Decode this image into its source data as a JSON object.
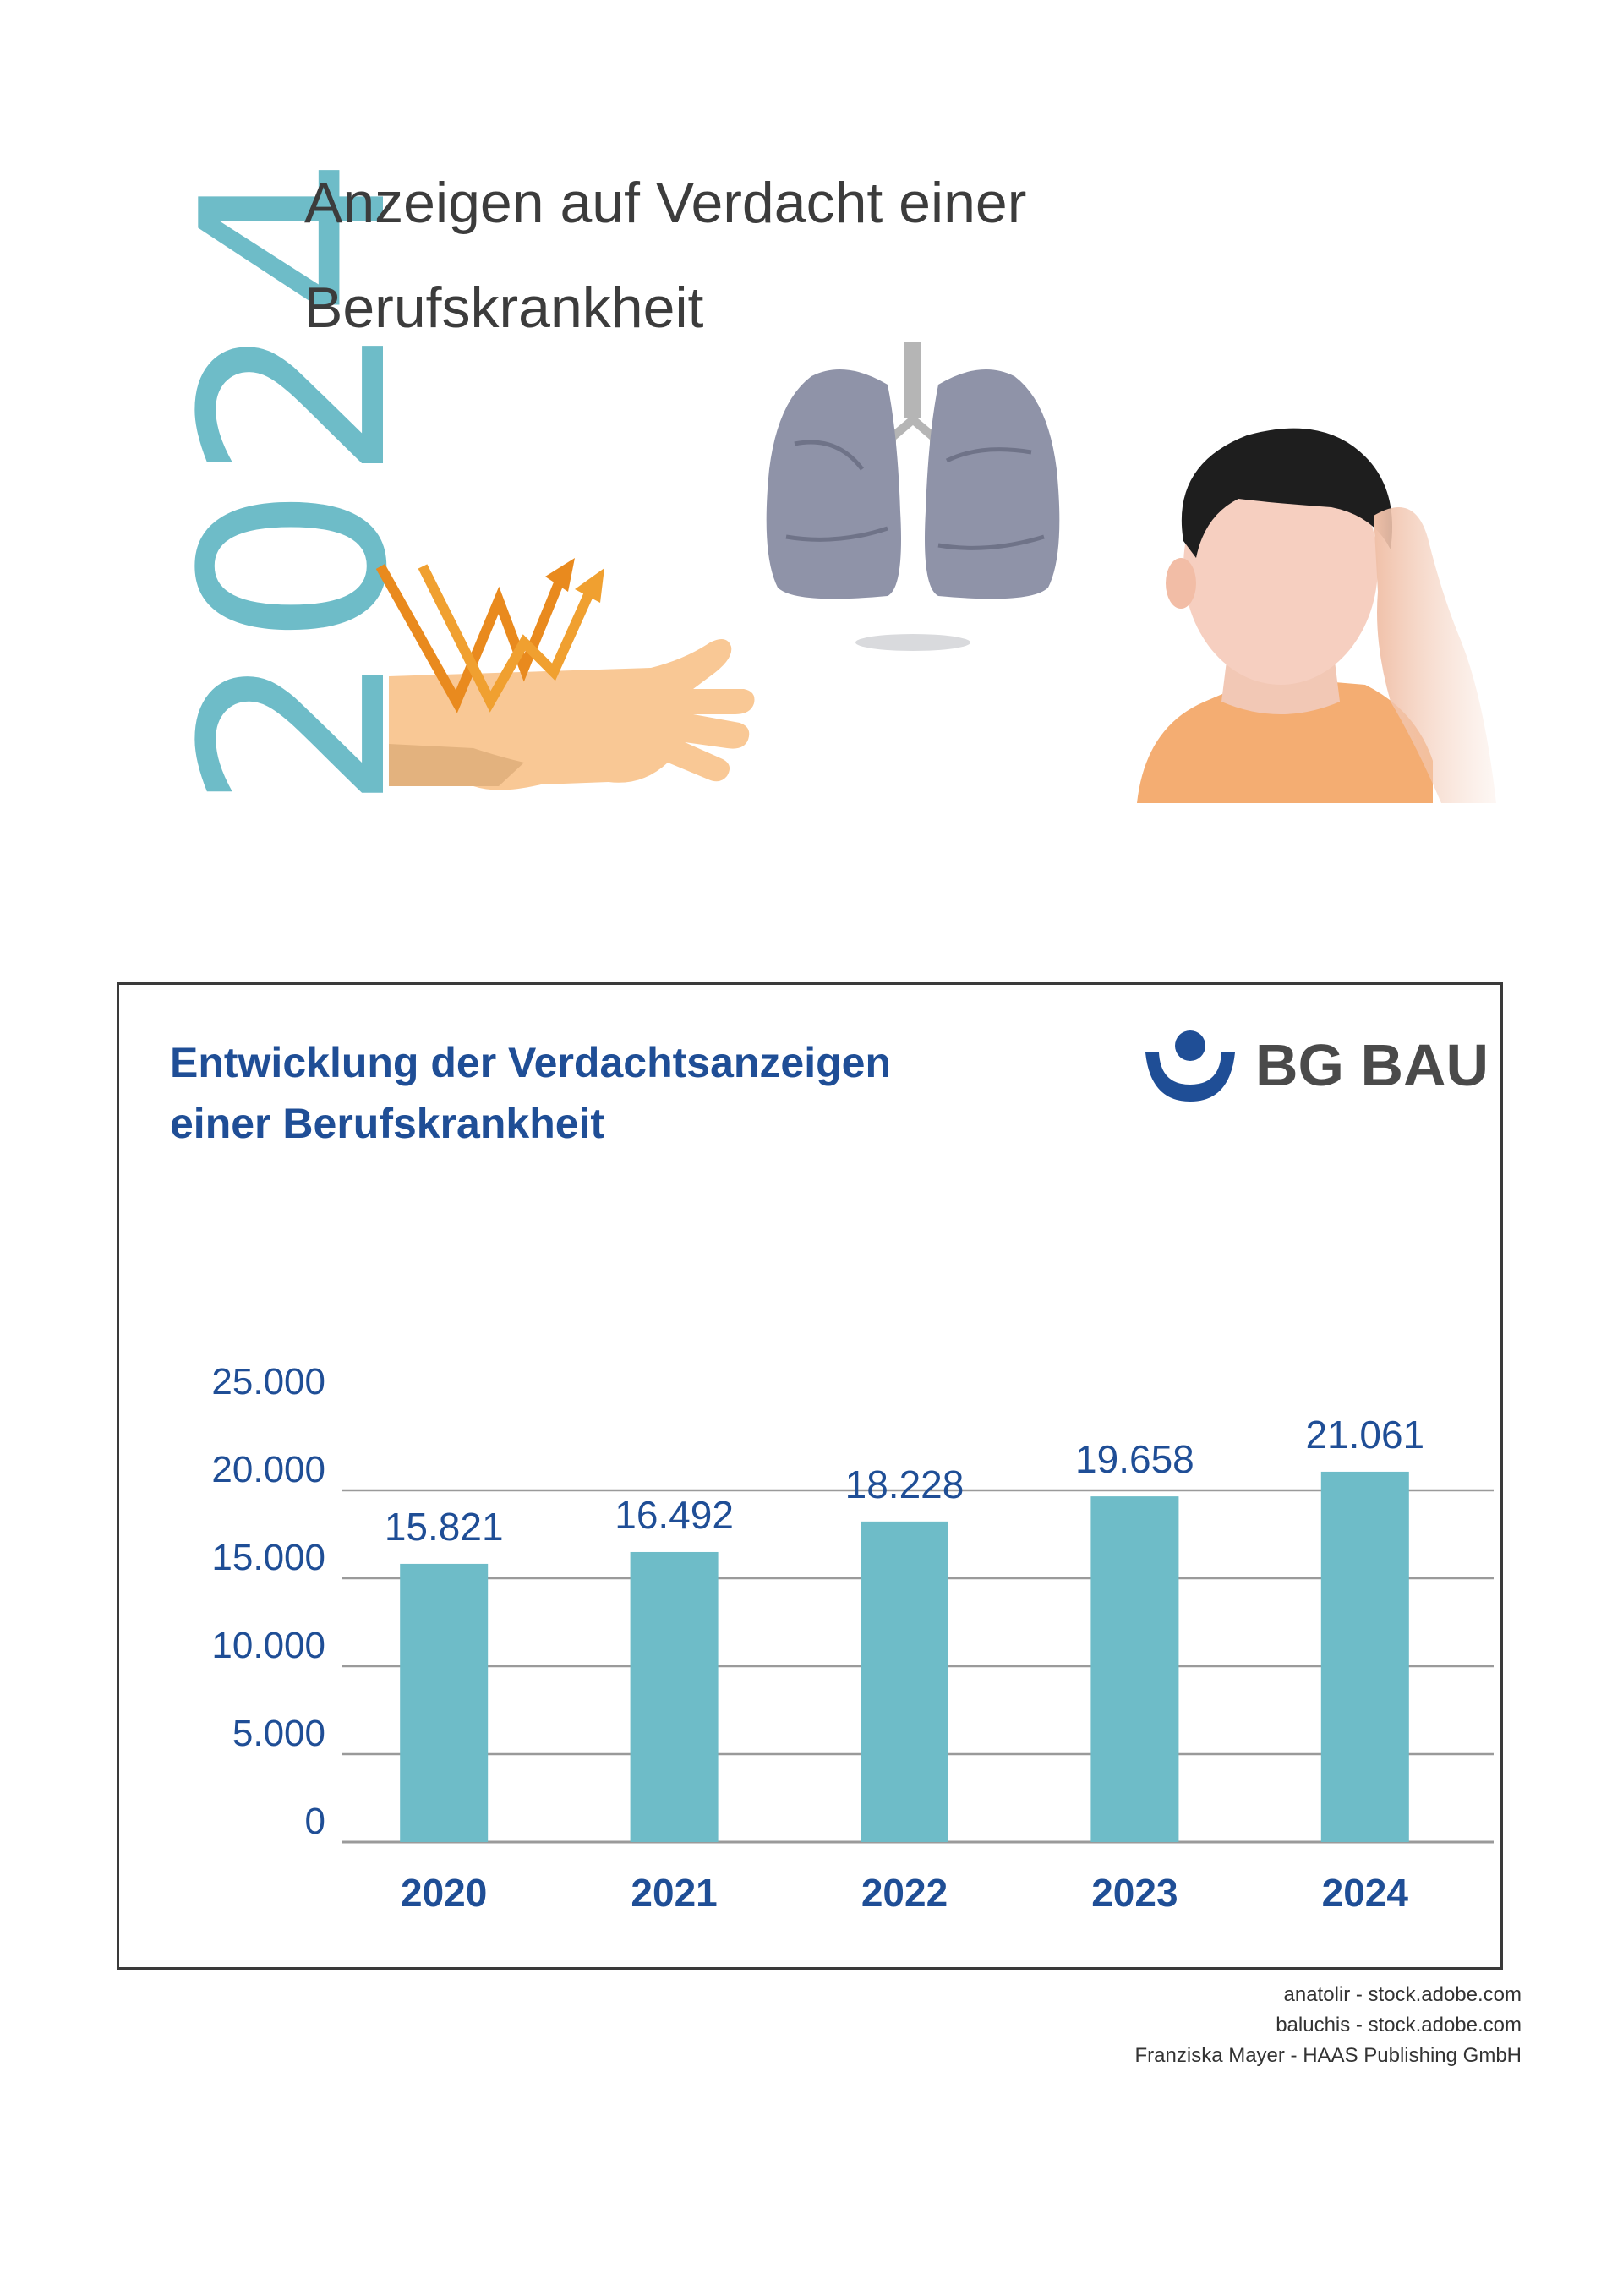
{
  "header": {
    "year": "2024",
    "title_line1": "Anzeigen auf Verdacht einer",
    "title_line2": "Berufskrankheit"
  },
  "illustrations": {
    "hand": "hand-with-vibration-arrows-icon",
    "lungs": "lungs-icon",
    "person": "person-listening-icon"
  },
  "colors": {
    "accent": "#6ebcc8",
    "title_blue": "#1f4e96",
    "axis_blue": "#1f4e96",
    "grid": "#9a9a9a",
    "text": "#3c3c3c"
  },
  "logo": {
    "text": "BG BAU",
    "icon": "bg-bau-emblem-icon"
  },
  "chart_data": {
    "type": "bar",
    "title_line1": "Entwicklung der Verdachtsanzeigen",
    "title_line2": "einer Berufskrankheit",
    "categories": [
      "2020",
      "2021",
      "2022",
      "2023",
      "2024"
    ],
    "values": [
      15821,
      16492,
      18228,
      19658,
      21061
    ],
    "value_labels": [
      "15.821",
      "16.492",
      "18.228",
      "19.658",
      "21.061"
    ],
    "yticks": [
      0,
      5000,
      10000,
      15000,
      20000,
      25000
    ],
    "ytick_labels": [
      "0",
      "5.000",
      "10.000",
      "15.000",
      "20.000",
      "25.000"
    ],
    "ylim": [
      0,
      25000
    ],
    "grid": true,
    "bar_color": "#6ebcc8"
  },
  "credits": [
    "anatolir - stock.adobe.com",
    "baluchis - stock.adobe.com",
    "Franziska Mayer - HAAS Publishing GmbH"
  ]
}
